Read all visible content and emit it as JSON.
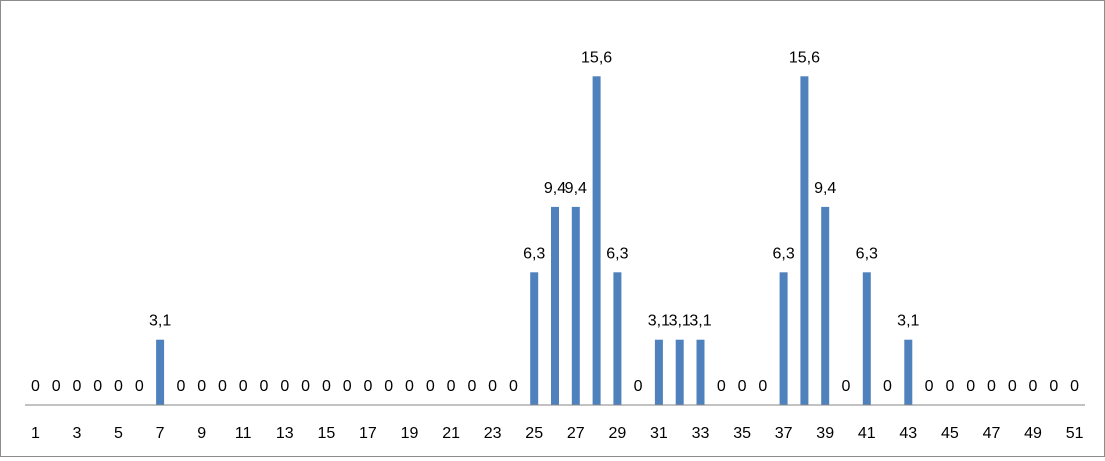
{
  "chart_data": {
    "type": "bar",
    "title": "",
    "xlabel": "",
    "ylabel": "",
    "ylim": [
      0,
      16.5
    ],
    "grid": false,
    "legend": "none",
    "bar_color": "#4f81bd",
    "axis_color": "#868686",
    "categories": [
      1,
      2,
      3,
      4,
      5,
      6,
      7,
      8,
      9,
      10,
      11,
      12,
      13,
      14,
      15,
      16,
      17,
      18,
      19,
      20,
      21,
      22,
      23,
      24,
      25,
      26,
      27,
      28,
      29,
      30,
      31,
      32,
      33,
      34,
      35,
      36,
      37,
      38,
      39,
      40,
      41,
      42,
      43,
      44,
      45,
      46,
      47,
      48,
      49,
      50,
      51
    ],
    "values": [
      0,
      0,
      0,
      0,
      0,
      0,
      3.1,
      0,
      0,
      0,
      0,
      0,
      0,
      0,
      0,
      0,
      0,
      0,
      0,
      0,
      0,
      0,
      0,
      0,
      6.3,
      9.4,
      9.4,
      15.6,
      6.3,
      0,
      3.1,
      3.1,
      3.1,
      0,
      0,
      0,
      6.3,
      15.6,
      9.4,
      0,
      6.3,
      0,
      3.1,
      0,
      0,
      0,
      0,
      0,
      0,
      0,
      0
    ],
    "data_labels": [
      "0",
      "0",
      "0",
      "0",
      "0",
      "0",
      "3,1",
      "0",
      "0",
      "0",
      "0",
      "0",
      "0",
      "0",
      "0",
      "0",
      "0",
      "0",
      "0",
      "0",
      "0",
      "0",
      "0",
      "0",
      "6,3",
      "9,4",
      "9,4",
      "15,6",
      "6,3",
      "0",
      "3,1",
      "3,1",
      "3,1",
      "0",
      "0",
      "0",
      "6,3",
      "15,6",
      "9,4",
      "0",
      "6,3",
      "0",
      "3,1",
      "0",
      "0",
      "0",
      "0",
      "0",
      "0",
      "0",
      "0"
    ],
    "tick_labels": [
      "1",
      "3",
      "5",
      "7",
      "9",
      "11",
      "13",
      "15",
      "17",
      "19",
      "21",
      "23",
      "25",
      "27",
      "29",
      "31",
      "33",
      "35",
      "37",
      "39",
      "41",
      "43",
      "45",
      "47",
      "49",
      "51"
    ]
  }
}
